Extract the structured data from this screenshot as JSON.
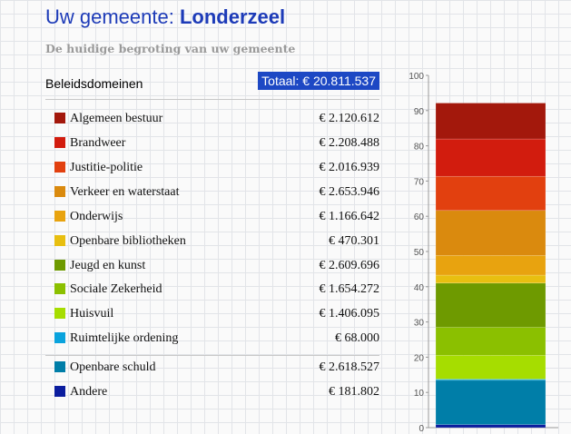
{
  "header": {
    "title_prefix": "Uw gemeente: ",
    "title_name": "Londerzeel",
    "subtitle": "De huidige begroting van uw gemeente",
    "section": "Beleidsdomeinen",
    "total": "Totaal: € 20.811.537"
  },
  "items": [
    {
      "label": "Algemeen bestuur",
      "value": "€ 2.120.612",
      "color": "#a3180c"
    },
    {
      "label": "Brandweer",
      "value": "€ 2.208.488",
      "color": "#d21c0e"
    },
    {
      "label": "Justitie-politie",
      "value": "€ 2.016.939",
      "color": "#e2400f"
    },
    {
      "label": "Verkeer en waterstaat",
      "value": "€ 2.653.946",
      "color": "#da8a0e"
    },
    {
      "label": "Onderwijs",
      "value": "€ 1.166.642",
      "color": "#e8a30f"
    },
    {
      "label": "Openbare bibliotheken",
      "value": "€ 470.301",
      "color": "#e8bf10"
    },
    {
      "label": "Jeugd en kunst",
      "value": "€ 2.609.696",
      "color": "#6e9a00"
    },
    {
      "label": "Sociale Zekerheid",
      "value": "€ 1.654.272",
      "color": "#8bc000"
    },
    {
      "label": "Huisvuil",
      "value": "€ 1.406.095",
      "color": "#a6dd00"
    },
    {
      "label": "Ruimtelijke ordening",
      "value": "€ 68.000",
      "color": "#0aa3dd"
    },
    {
      "label": "Openbare schuld",
      "value": "€ 2.618.527",
      "color": "#007ea8"
    },
    {
      "label": "Andere",
      "value": "€ 181.802",
      "color": "#0b1d9e"
    }
  ],
  "chart_data": {
    "type": "bar",
    "stacked": true,
    "ylim": [
      0,
      100
    ],
    "yticks": [
      "0",
      "10",
      "20",
      "30",
      "40",
      "50",
      "60",
      "70",
      "80",
      "90",
      "100"
    ],
    "series_bottom_to_top": [
      {
        "name": "Andere",
        "value": 0.87
      },
      {
        "name": "Openbare schuld",
        "value": 12.58
      },
      {
        "name": "Ruimtelijke ordening",
        "value": 0.33
      },
      {
        "name": "Huisvuil",
        "value": 6.76
      },
      {
        "name": "Sociale Zekerheid",
        "value": 7.95
      },
      {
        "name": "Jeugd en kunst",
        "value": 12.54
      },
      {
        "name": "Openbare bibliotheken",
        "value": 2.26
      },
      {
        "name": "Onderwijs",
        "value": 5.61
      },
      {
        "name": "Verkeer en waterstaat",
        "value": 12.75
      },
      {
        "name": "Justitie-politie",
        "value": 9.69
      },
      {
        "name": "Brandweer",
        "value": 10.61
      },
      {
        "name": "Algemeen bestuur",
        "value": 10.19
      }
    ]
  }
}
